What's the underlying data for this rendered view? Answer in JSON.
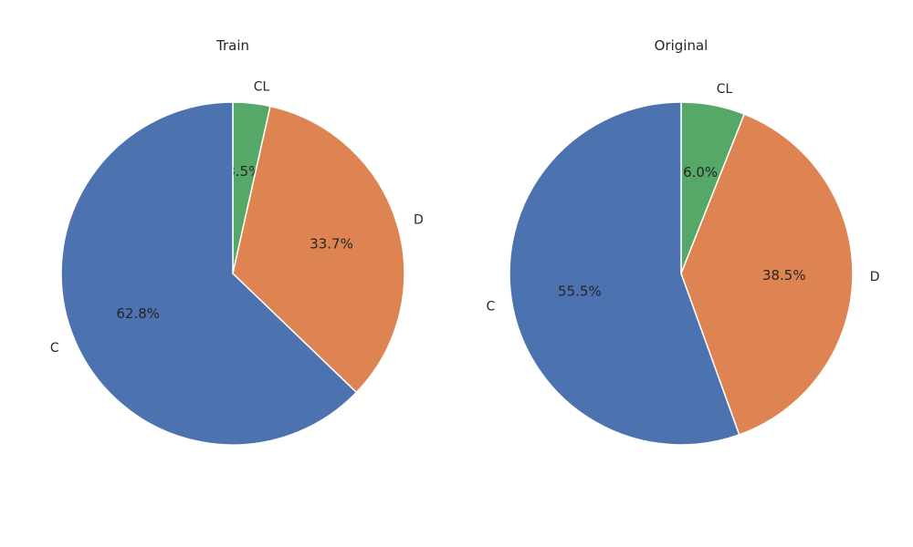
{
  "chart_data": [
    {
      "type": "pie",
      "title": "Train",
      "categories": [
        "CL",
        "D",
        "C"
      ],
      "values": [
        3.5,
        33.7,
        62.8
      ],
      "value_labels": [
        "3.5%",
        "33.7%",
        "62.8%"
      ],
      "start": "top, counter-clockwise from CL",
      "colors": [
        "#55a868",
        "#dd8452",
        "#4c72b0"
      ]
    },
    {
      "type": "pie",
      "title": "Original",
      "categories": [
        "CL",
        "D",
        "C"
      ],
      "values": [
        6.0,
        38.5,
        55.5
      ],
      "value_labels": [
        "6.0%",
        "38.5%",
        "55.5%"
      ],
      "start": "top, counter-clockwise from CL",
      "colors": [
        "#55a868",
        "#dd8452",
        "#4c72b0"
      ]
    }
  ]
}
